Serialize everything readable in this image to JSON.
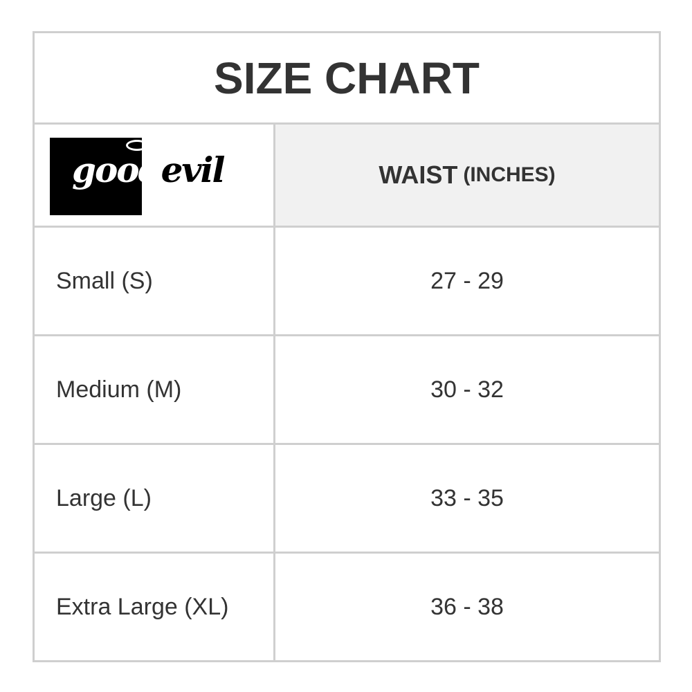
{
  "title": "SIZE CHART",
  "logo": {
    "text_good": "good",
    "text_evil": "evil"
  },
  "header": {
    "label": "WAIST",
    "unit": "(INCHES)"
  },
  "rows": [
    {
      "size": "Small (S)",
      "waist": "27 - 29"
    },
    {
      "size": "Medium (M)",
      "waist": "30 - 32"
    },
    {
      "size": "Large (L)",
      "waist": "33 - 35"
    },
    {
      "size": "Extra Large (XL)",
      "waist": "36 - 38"
    }
  ]
}
